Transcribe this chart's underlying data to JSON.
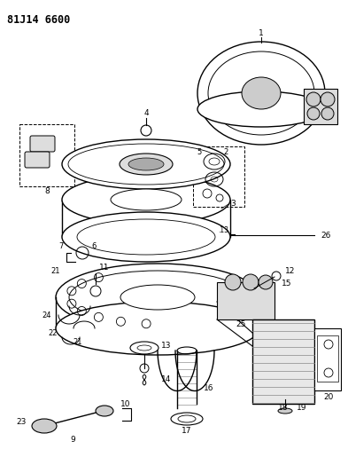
{
  "title": "81J14 6600",
  "bg": "#ffffff",
  "lc": "#000000",
  "gray": "#888888",
  "lgray": "#cccccc"
}
